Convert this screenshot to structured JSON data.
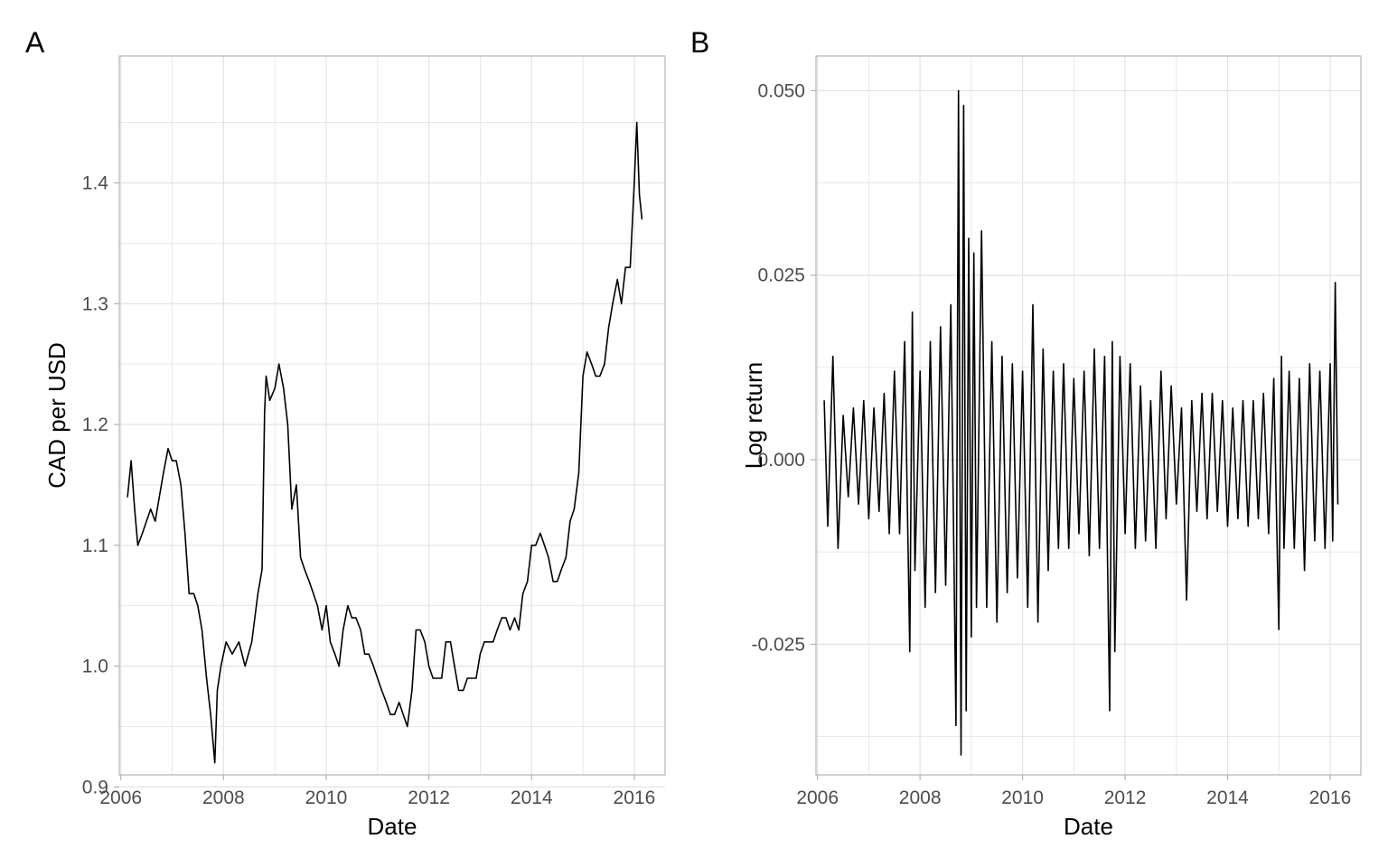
{
  "colors": {
    "line": "#000000",
    "grid": "#e3e3e3",
    "panel_border": "#b3b3b3",
    "tick_text": "#4d4d4d"
  },
  "chart_data": [
    {
      "panel_tag": "A",
      "type": "line",
      "xlabel": "Date",
      "ylabel": "CAD per USD",
      "xlim": [
        2005.97,
        2016.6
      ],
      "ylim": [
        0.91,
        1.505
      ],
      "x_ticks": [
        {
          "value": 2006,
          "label": "2006"
        },
        {
          "value": 2008,
          "label": "2008"
        },
        {
          "value": 2010,
          "label": "2010"
        },
        {
          "value": 2012,
          "label": "2012"
        },
        {
          "value": 2014,
          "label": "2014"
        },
        {
          "value": 2016,
          "label": "2016"
        }
      ],
      "y_ticks": [
        {
          "value": 0.9,
          "label": "0.9"
        },
        {
          "value": 1.0,
          "label": "1.0"
        },
        {
          "value": 1.1,
          "label": "1.1"
        },
        {
          "value": 1.2,
          "label": "1.2"
        },
        {
          "value": 1.3,
          "label": "1.3"
        },
        {
          "value": 1.4,
          "label": "1.4"
        }
      ],
      "grid": true,
      "legend": "none",
      "series": [
        {
          "x": [
            2006.13,
            2006.2,
            2006.27,
            2006.33,
            2006.42,
            2006.5,
            2006.58,
            2006.67,
            2006.75,
            2006.83,
            2006.92,
            2007.0,
            2007.08,
            2007.17,
            2007.25,
            2007.33,
            2007.42,
            2007.5,
            2007.58,
            2007.67,
            2007.75,
            2007.83,
            2007.88,
            2007.95,
            2008.05,
            2008.17,
            2008.3,
            2008.42,
            2008.55,
            2008.67,
            2008.75,
            2008.8,
            2008.83,
            2008.9,
            2009.0,
            2009.08,
            2009.17,
            2009.25,
            2009.33,
            2009.42,
            2009.5,
            2009.58,
            2009.67,
            2009.75,
            2009.83,
            2009.92,
            2010.0,
            2010.08,
            2010.17,
            2010.25,
            2010.33,
            2010.42,
            2010.5,
            2010.58,
            2010.67,
            2010.75,
            2010.83,
            2010.92,
            2011.0,
            2011.08,
            2011.17,
            2011.25,
            2011.33,
            2011.42,
            2011.5,
            2011.58,
            2011.67,
            2011.75,
            2011.83,
            2011.92,
            2012.0,
            2012.08,
            2012.17,
            2012.25,
            2012.33,
            2012.42,
            2012.5,
            2012.58,
            2012.67,
            2012.75,
            2012.83,
            2012.92,
            2013.0,
            2013.08,
            2013.17,
            2013.25,
            2013.33,
            2013.42,
            2013.5,
            2013.58,
            2013.67,
            2013.75,
            2013.83,
            2013.92,
            2014.0,
            2014.08,
            2014.17,
            2014.25,
            2014.33,
            2014.42,
            2014.5,
            2014.58,
            2014.67,
            2014.75,
            2014.83,
            2014.92,
            2015.0,
            2015.08,
            2015.17,
            2015.25,
            2015.33,
            2015.42,
            2015.5,
            2015.58,
            2015.67,
            2015.75,
            2015.83,
            2015.92,
            2016.0,
            2016.05,
            2016.1,
            2016.15
          ],
          "y": [
            1.14,
            1.17,
            1.13,
            1.1,
            1.11,
            1.12,
            1.13,
            1.12,
            1.14,
            1.16,
            1.18,
            1.17,
            1.17,
            1.15,
            1.11,
            1.06,
            1.06,
            1.05,
            1.03,
            0.99,
            0.96,
            0.92,
            0.98,
            1.0,
            1.02,
            1.01,
            1.02,
            1.0,
            1.02,
            1.06,
            1.08,
            1.21,
            1.24,
            1.22,
            1.23,
            1.25,
            1.23,
            1.2,
            1.13,
            1.15,
            1.09,
            1.08,
            1.07,
            1.06,
            1.05,
            1.03,
            1.05,
            1.02,
            1.01,
            1.0,
            1.03,
            1.05,
            1.04,
            1.04,
            1.03,
            1.01,
            1.01,
            1.0,
            0.99,
            0.98,
            0.97,
            0.96,
            0.96,
            0.97,
            0.96,
            0.95,
            0.98,
            1.03,
            1.03,
            1.02,
            1.0,
            0.99,
            0.99,
            0.99,
            1.02,
            1.02,
            1.0,
            0.98,
            0.98,
            0.99,
            0.99,
            0.99,
            1.01,
            1.02,
            1.02,
            1.02,
            1.03,
            1.04,
            1.04,
            1.03,
            1.04,
            1.03,
            1.06,
            1.07,
            1.1,
            1.1,
            1.11,
            1.1,
            1.09,
            1.07,
            1.07,
            1.08,
            1.09,
            1.12,
            1.13,
            1.16,
            1.24,
            1.26,
            1.25,
            1.24,
            1.24,
            1.25,
            1.28,
            1.3,
            1.32,
            1.3,
            1.33,
            1.33,
            1.4,
            1.45,
            1.39,
            1.37
          ]
        }
      ]
    },
    {
      "panel_tag": "B",
      "type": "line",
      "xlabel": "Date",
      "ylabel": "Log return",
      "xlim": [
        2005.97,
        2016.6
      ],
      "ylim": [
        -0.0427,
        0.0547
      ],
      "x_ticks": [
        {
          "value": 2006,
          "label": "2006"
        },
        {
          "value": 2008,
          "label": "2008"
        },
        {
          "value": 2010,
          "label": "2010"
        },
        {
          "value": 2012,
          "label": "2012"
        },
        {
          "value": 2014,
          "label": "2014"
        },
        {
          "value": 2016,
          "label": "2016"
        }
      ],
      "y_ticks": [
        {
          "value": -0.025,
          "label": "-0.025"
        },
        {
          "value": 0.0,
          "label": "0.000"
        },
        {
          "value": 0.025,
          "label": "0.025"
        },
        {
          "value": 0.05,
          "label": "0.050"
        }
      ],
      "grid": true,
      "legend": "none",
      "series": [
        {
          "x": [
            2006.13,
            2006.2,
            2006.3,
            2006.4,
            2006.5,
            2006.6,
            2006.7,
            2006.8,
            2006.9,
            2007.0,
            2007.1,
            2007.2,
            2007.3,
            2007.4,
            2007.5,
            2007.6,
            2007.7,
            2007.8,
            2007.85,
            2007.9,
            2008.0,
            2008.1,
            2008.2,
            2008.3,
            2008.4,
            2008.5,
            2008.6,
            2008.7,
            2008.75,
            2008.8,
            2008.85,
            2008.9,
            2008.95,
            2009.0,
            2009.05,
            2009.1,
            2009.2,
            2009.3,
            2009.4,
            2009.5,
            2009.6,
            2009.7,
            2009.8,
            2009.9,
            2010.0,
            2010.1,
            2010.2,
            2010.3,
            2010.4,
            2010.5,
            2010.6,
            2010.7,
            2010.8,
            2010.9,
            2011.0,
            2011.1,
            2011.2,
            2011.3,
            2011.4,
            2011.5,
            2011.6,
            2011.7,
            2011.75,
            2011.8,
            2011.9,
            2012.0,
            2012.1,
            2012.2,
            2012.3,
            2012.4,
            2012.5,
            2012.6,
            2012.7,
            2012.8,
            2012.9,
            2013.0,
            2013.1,
            2013.2,
            2013.3,
            2013.4,
            2013.5,
            2013.6,
            2013.7,
            2013.8,
            2013.9,
            2014.0,
            2014.1,
            2014.2,
            2014.3,
            2014.4,
            2014.5,
            2014.6,
            2014.7,
            2014.8,
            2014.9,
            2015.0,
            2015.05,
            2015.1,
            2015.2,
            2015.3,
            2015.4,
            2015.5,
            2015.6,
            2015.7,
            2015.8,
            2015.9,
            2016.0,
            2016.05,
            2016.1,
            2016.15
          ],
          "y": [
            0.008,
            -0.009,
            0.014,
            -0.012,
            0.006,
            -0.005,
            0.007,
            -0.006,
            0.008,
            -0.008,
            0.007,
            -0.007,
            0.009,
            -0.01,
            0.012,
            -0.01,
            0.016,
            -0.026,
            0.02,
            -0.015,
            0.012,
            -0.02,
            0.016,
            -0.018,
            0.018,
            -0.017,
            0.021,
            -0.036,
            0.05,
            -0.04,
            0.048,
            -0.034,
            0.03,
            -0.024,
            0.028,
            -0.02,
            0.031,
            -0.02,
            0.016,
            -0.022,
            0.014,
            -0.018,
            0.013,
            -0.016,
            0.012,
            -0.02,
            0.021,
            -0.022,
            0.015,
            -0.015,
            0.012,
            -0.012,
            0.013,
            -0.012,
            0.011,
            -0.01,
            0.012,
            -0.013,
            0.015,
            -0.012,
            0.014,
            -0.034,
            0.016,
            -0.026,
            0.014,
            -0.01,
            0.013,
            -0.012,
            0.01,
            -0.011,
            0.008,
            -0.012,
            0.012,
            -0.008,
            0.01,
            -0.006,
            0.007,
            -0.019,
            0.008,
            -0.007,
            0.009,
            -0.008,
            0.009,
            -0.007,
            0.008,
            -0.009,
            0.007,
            -0.008,
            0.008,
            -0.009,
            0.008,
            -0.008,
            0.009,
            -0.01,
            0.011,
            -0.023,
            0.014,
            -0.012,
            0.012,
            -0.012,
            0.011,
            -0.015,
            0.013,
            -0.011,
            0.012,
            -0.012,
            0.013,
            -0.011,
            0.024,
            -0.006
          ]
        }
      ]
    }
  ]
}
